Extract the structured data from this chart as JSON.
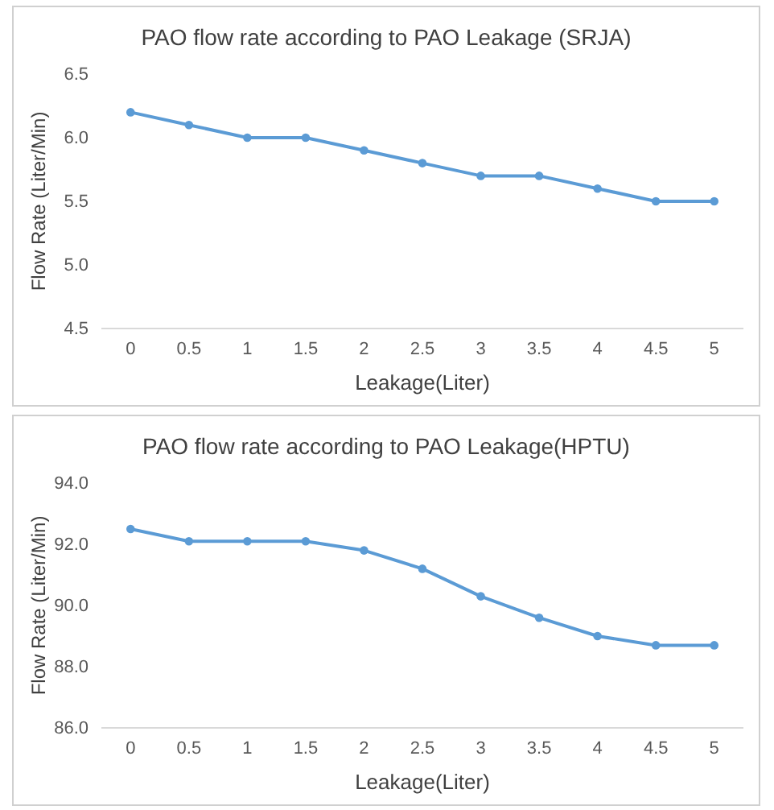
{
  "chart_data": [
    {
      "type": "line",
      "title": "PAO flow rate according to PAO Leakage (SRJA)",
      "xlabel": "Leakage(Liter)",
      "ylabel": "Flow Rate (Liter/Min)",
      "categories": [
        "0",
        "0.5",
        "1",
        "1.5",
        "2",
        "2.5",
        "3",
        "3.5",
        "4",
        "4.5",
        "5"
      ],
      "series": [
        {
          "color": "#5b9bd5",
          "values": [
            6.2,
            6.1,
            6.0,
            6.0,
            5.9,
            5.8,
            5.7,
            5.7,
            5.6,
            5.5,
            5.5
          ]
        }
      ],
      "ylim": [
        4.5,
        6.5
      ],
      "yticks": [
        4.5,
        {
          "value": 5,
          "label": "5.0"
        },
        5.5,
        {
          "value": 6,
          "label": "6.0"
        },
        6.5
      ],
      "marker": "circle"
    },
    {
      "type": "line",
      "title": "PAO flow rate according to PAO Leakage(HPTU)",
      "xlabel": "Leakage(Liter)",
      "ylabel": "Flow Rate (Liter/Min)",
      "categories": [
        "0",
        "0.5",
        "1",
        "1.5",
        "2",
        "2.5",
        "3",
        "3.5",
        "4",
        "4.5",
        "5"
      ],
      "series": [
        {
          "color": "#5b9bd5",
          "values": [
            92.5,
            92.1,
            92.1,
            92.1,
            91.8,
            91.2,
            90.3,
            89.6,
            89.0,
            88.7,
            88.7
          ]
        }
      ],
      "ylim": [
        86,
        94
      ],
      "yticks": [
        {
          "value": 86,
          "label": "86.0"
        },
        {
          "value": 88,
          "label": "88.0"
        },
        {
          "value": 90,
          "label": "90.0"
        },
        {
          "value": 92,
          "label": "92.0"
        },
        {
          "value": 94,
          "label": "94.0"
        }
      ],
      "marker": "circle"
    }
  ]
}
